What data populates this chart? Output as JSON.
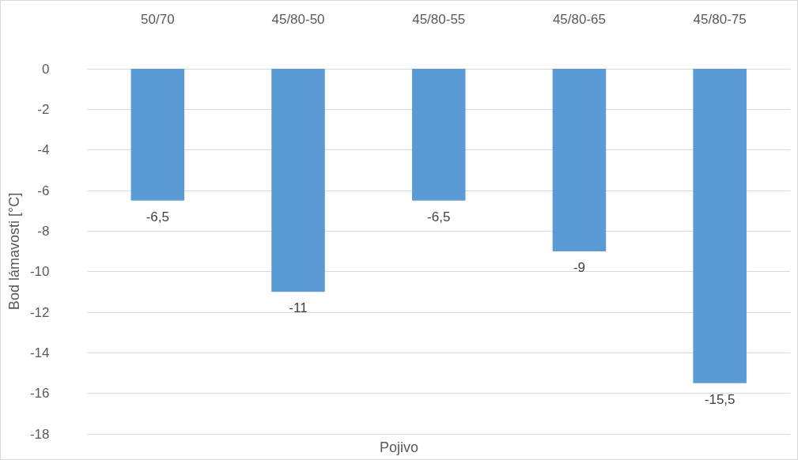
{
  "chart_data": {
    "type": "bar",
    "xlabel": "Pojivo",
    "ylabel": "Bod lámavosti [°C]",
    "categories": [
      "50/70",
      "45/80-50",
      "45/80-55",
      "45/80-65",
      "45/80-75"
    ],
    "values": [
      -6.5,
      -11,
      -6.5,
      -9,
      -15.5
    ],
    "color": "#5b9bd5",
    "value_labels": [
      "-6,5",
      "-11",
      "-6,5",
      "-9",
      "-15,5"
    ],
    "ylim": [
      -18,
      0
    ],
    "yticks": [
      0,
      -2,
      -4,
      -6,
      -8,
      -10,
      -12,
      -14,
      -16,
      -18
    ],
    "grid": "y"
  }
}
